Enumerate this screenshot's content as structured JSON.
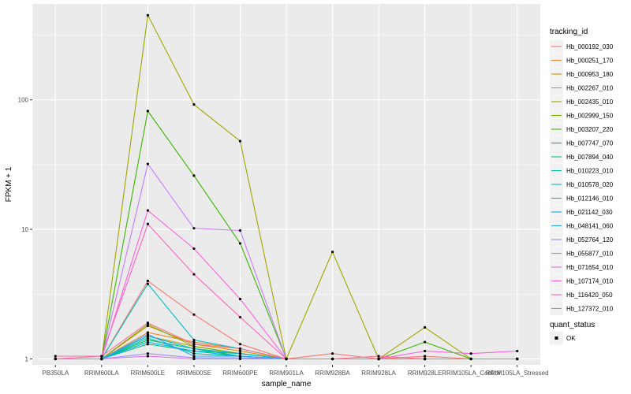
{
  "chart_data": {
    "type": "line",
    "y_scale": "log10",
    "xlabel": "sample_name",
    "ylabel": "FPKM + 1",
    "ylim": [
      0.9,
      550
    ],
    "y_ticks": [
      1,
      10,
      100
    ],
    "y_tick_labels": [
      "1",
      "10",
      "100"
    ],
    "grid": true,
    "legend_position": "right",
    "legend_title": "tracking_id",
    "status_legend_title": "quant_status",
    "status_legend_items": [
      "OK"
    ],
    "categories": [
      "PB350LA",
      "RRIM600LA",
      "RRIM600LE",
      "RRIM600SE",
      "RRIM600PE",
      "RRIM901LA",
      "RRIM928BA",
      "RRIM928LA",
      "RRIM928LE",
      "RRIM105LA_Control",
      "RRIM105LA_Stressed"
    ],
    "series": [
      {
        "name": "Hb_000192_030",
        "color": "#F8766D",
        "values": [
          1.0,
          1.0,
          4.0,
          2.2,
          1.3,
          1.0,
          1.1,
          1.0,
          1.05,
          1.0,
          1.0
        ]
      },
      {
        "name": "Hb_000251_170",
        "color": "#EA8331",
        "values": [
          1.0,
          1.0,
          1.6,
          1.35,
          1.2,
          1.0,
          1.0,
          1.0,
          1.0,
          1.0,
          1.0
        ]
      },
      {
        "name": "Hb_000953_180",
        "color": "#D89000",
        "values": [
          1.0,
          1.0,
          1.8,
          1.3,
          1.15,
          1.0,
          1.0,
          1.0,
          1.0,
          1.0,
          1.0
        ]
      },
      {
        "name": "Hb_002267_010",
        "color": "#C09B00",
        "values": [
          1.0,
          1.0,
          1.5,
          1.25,
          1.1,
          1.0,
          1.0,
          1.0,
          1.0,
          1.0,
          1.0
        ]
      },
      {
        "name": "Hb_002435_010",
        "color": "#A3A500",
        "values": [
          1.0,
          1.0,
          450,
          92,
          48,
          1.0,
          6.7,
          1.0,
          1.75,
          1.0,
          1.0
        ]
      },
      {
        "name": "Hb_002999_150",
        "color": "#7CAE00",
        "values": [
          1.0,
          1.0,
          1.85,
          1.25,
          1.1,
          1.0,
          1.0,
          1.0,
          1.0,
          1.0,
          1.0
        ]
      },
      {
        "name": "Hb_003207_220",
        "color": "#39B600",
        "values": [
          1.0,
          1.0,
          82,
          26,
          7.8,
          1.0,
          1.0,
          1.0,
          1.35,
          1.0,
          1.0
        ]
      },
      {
        "name": "Hb_007747_070",
        "color": "#00BB4E",
        "values": [
          1.0,
          1.0,
          1.4,
          1.2,
          1.05,
          1.0,
          1.0,
          1.0,
          1.0,
          1.0,
          1.0
        ]
      },
      {
        "name": "Hb_007894_040",
        "color": "#00BF7D",
        "values": [
          1.0,
          1.0,
          1.3,
          1.15,
          1.1,
          1.0,
          1.0,
          1.0,
          1.0,
          1.0,
          1.0
        ]
      },
      {
        "name": "Hb_010223_010",
        "color": "#00C1A3",
        "values": [
          1.0,
          1.0,
          1.45,
          1.1,
          1.05,
          1.0,
          1.0,
          1.0,
          1.0,
          1.0,
          1.0
        ]
      },
      {
        "name": "Hb_010578_020",
        "color": "#00BFC4",
        "values": [
          1.0,
          1.0,
          3.8,
          1.4,
          1.2,
          1.0,
          1.0,
          1.0,
          1.0,
          1.0,
          1.0
        ]
      },
      {
        "name": "Hb_012146_010",
        "color": "#00BAE0",
        "values": [
          1.0,
          1.0,
          1.5,
          1.2,
          1.1,
          1.0,
          1.0,
          1.0,
          1.0,
          1.0,
          1.0
        ]
      },
      {
        "name": "Hb_021142_030",
        "color": "#00B0F6",
        "values": [
          1.0,
          1.0,
          1.35,
          1.15,
          1.05,
          1.0,
          1.0,
          1.0,
          1.0,
          1.0,
          1.0
        ]
      },
      {
        "name": "Hb_048141_060",
        "color": "#35A2FF",
        "values": [
          1.0,
          1.0,
          1.55,
          1.05,
          1.05,
          1.0,
          1.0,
          1.0,
          1.0,
          1.0,
          1.0
        ]
      },
      {
        "name": "Hb_052764_120",
        "color": "#9590FF",
        "values": [
          1.0,
          1.0,
          1.1,
          1.02,
          1.02,
          1.0,
          1.0,
          1.0,
          1.0,
          1.0,
          1.0
        ]
      },
      {
        "name": "Hb_055877_010",
        "color": "#C77CFF",
        "values": [
          1.0,
          1.0,
          32,
          10.2,
          9.8,
          1.0,
          1.0,
          1.0,
          1.0,
          1.0,
          1.0
        ]
      },
      {
        "name": "Hb_071654_010",
        "color": "#E76BF3",
        "values": [
          1.0,
          1.0,
          1.05,
          1.0,
          1.0,
          1.0,
          1.0,
          1.0,
          1.0,
          1.0,
          1.0
        ]
      },
      {
        "name": "Hb_107174_010",
        "color": "#FA62DB",
        "values": [
          1.0,
          1.0,
          14,
          7.1,
          2.9,
          1.0,
          1.0,
          1.0,
          1.15,
          1.1,
          1.15
        ]
      },
      {
        "name": "Hb_116420_050",
        "color": "#FF62BC",
        "values": [
          1.0,
          1.05,
          11,
          4.5,
          2.1,
          1.0,
          1.0,
          1.0,
          1.0,
          1.0,
          1.0
        ]
      },
      {
        "name": "Hb_127372_010",
        "color": "#FF6C91",
        "values": [
          1.05,
          1.05,
          1.9,
          1.3,
          1.2,
          1.0,
          1.0,
          1.05,
          1.0,
          1.0,
          1.0
        ]
      }
    ]
  }
}
